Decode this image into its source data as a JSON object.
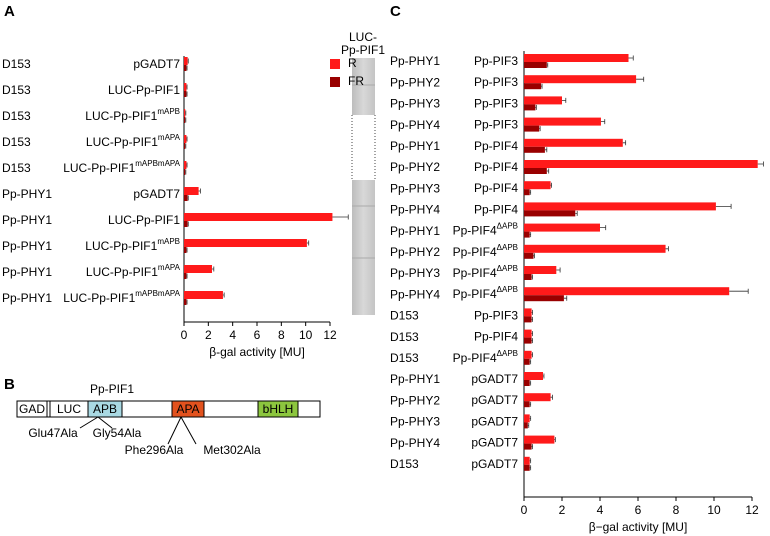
{
  "panels": [
    "A",
    "B",
    "C"
  ],
  "chart_data": [
    {
      "type": "barh",
      "xlabel": "β-gal activity [MU]",
      "xlim": [
        0,
        12
      ],
      "xticks": [
        0,
        2,
        4,
        6,
        8,
        10,
        12
      ],
      "legend": "upper right",
      "blot_label": [
        "LUC-",
        "Pp-PIF1"
      ],
      "categories": [
        {
          "bait": "D153",
          "prey": "pGADT7"
        },
        {
          "bait": "D153",
          "prey": "LUC-Pp-PIF1"
        },
        {
          "bait": "D153",
          "prey": "LUC-Pp-PIF1",
          "sup": "mAPB"
        },
        {
          "bait": "D153",
          "prey": "LUC-Pp-PIF1",
          "sup": "mAPA"
        },
        {
          "bait": "D153",
          "prey": "LUC-Pp-PIF1",
          "sup": "mAPBmAPA"
        },
        {
          "bait": "Pp-PHY1",
          "prey": "pGADT7"
        },
        {
          "bait": "Pp-PHY1",
          "prey": "LUC-Pp-PIF1"
        },
        {
          "bait": "Pp-PHY1",
          "prey": "LUC-Pp-PIF1",
          "sup": "mAPB"
        },
        {
          "bait": "Pp-PHY1",
          "prey": "LUC-Pp-PIF1",
          "sup": "mAPA"
        },
        {
          "bait": "Pp-PHY1",
          "prey": "LUC-Pp-PIF1",
          "sup": "mAPBmAPA"
        }
      ],
      "series": [
        {
          "name": "R",
          "color": "#ff1a1a",
          "values": [
            0.3,
            0.2,
            0.1,
            0.2,
            0.2,
            1.2,
            12.2,
            10.1,
            2.3,
            3.2
          ],
          "errors": [
            0.05,
            0.05,
            0.05,
            0.05,
            0.05,
            0.15,
            1.3,
            0.15,
            0.15,
            0.1
          ]
        },
        {
          "name": "FR",
          "color": "#990000",
          "values": [
            0.2,
            0.2,
            0.1,
            0.1,
            0.1,
            0.3,
            0.3,
            0.2,
            0.2,
            0.2
          ],
          "errors": [
            0.05,
            0.05,
            0.05,
            0.05,
            0.05,
            0.05,
            0.05,
            0.05,
            0.05,
            0.05
          ]
        }
      ]
    },
    {
      "type": "barh",
      "xlabel": "β−gal activity [MU]",
      "xlim": [
        0,
        12
      ],
      "xticks": [
        0,
        2,
        4,
        6,
        8,
        10,
        12
      ],
      "categories": [
        {
          "bait": "Pp-PHY1",
          "prey": "Pp-PIF3"
        },
        {
          "bait": "Pp-PHY2",
          "prey": "Pp-PIF3"
        },
        {
          "bait": "Pp-PHY3",
          "prey": "Pp-PIF3"
        },
        {
          "bait": "Pp-PHY4",
          "prey": "Pp-PIF3"
        },
        {
          "bait": "Pp-PHY1",
          "prey": "Pp-PIF4"
        },
        {
          "bait": "Pp-PHY2",
          "prey": "Pp-PIF4"
        },
        {
          "bait": "Pp-PHY3",
          "prey": "Pp-PIF4"
        },
        {
          "bait": "Pp-PHY4",
          "prey": "Pp-PIF4"
        },
        {
          "bait": "Pp-PHY1",
          "prey": "Pp-PIF4",
          "sup": "ΔAPB"
        },
        {
          "bait": "Pp-PHY2",
          "prey": "Pp-PIF4",
          "sup": "ΔAPB"
        },
        {
          "bait": "Pp-PHY3",
          "prey": "Pp-PIF4",
          "sup": "ΔAPB"
        },
        {
          "bait": "Pp-PHY4",
          "prey": "Pp-PIF4",
          "sup": "ΔAPB"
        },
        {
          "bait": "D153",
          "prey": "Pp-PIF3"
        },
        {
          "bait": "D153",
          "prey": "Pp-PIF4"
        },
        {
          "bait": "D153",
          "prey": "Pp-PIF4",
          "sup": "ΔAPB"
        },
        {
          "bait": "Pp-PHY1",
          "prey": "pGADT7"
        },
        {
          "bait": "Pp-PHY2",
          "prey": "pGADT7"
        },
        {
          "bait": "Pp-PHY3",
          "prey": "pGADT7"
        },
        {
          "bait": "Pp-PHY4",
          "prey": "pGADT7"
        },
        {
          "bait": "D153",
          "prey": "pGADT7"
        }
      ],
      "series": [
        {
          "name": "R",
          "color": "#ff1a1a",
          "values": [
            5.5,
            5.9,
            2.0,
            4.05,
            5.2,
            12.3,
            1.4,
            10.1,
            4.0,
            7.45,
            1.7,
            10.8,
            0.4,
            0.4,
            0.4,
            1.0,
            1.4,
            0.3,
            1.6,
            0.3
          ],
          "errors": [
            0.25,
            0.4,
            0.2,
            0.2,
            0.15,
            0.3,
            0.05,
            0.8,
            0.3,
            0.15,
            0.2,
            1.0,
            0.05,
            0.05,
            0.05,
            0.05,
            0.1,
            0.05,
            0.05,
            0.05
          ]
        },
        {
          "name": "FR",
          "color": "#990000",
          "values": [
            1.2,
            0.9,
            0.6,
            0.8,
            1.1,
            1.2,
            0.3,
            2.7,
            0.3,
            0.5,
            0.4,
            2.1,
            0.4,
            0.4,
            0.3,
            0.3,
            0.3,
            0.2,
            0.4,
            0.3
          ],
          "errors": [
            0.05,
            0.05,
            0.05,
            0.05,
            0.1,
            0.1,
            0.05,
            0.1,
            0.05,
            0.05,
            0.05,
            0.15,
            0.05,
            0.05,
            0.05,
            0.05,
            0.05,
            0.05,
            0.05,
            0.05
          ]
        }
      ]
    }
  ],
  "diagram": {
    "title": "Pp-PIF1",
    "domains": [
      "GAD",
      "LUC",
      "APB",
      "APA",
      "bHLH"
    ],
    "mutations": [
      "Glu47Ala",
      "Gly54Ala",
      "Phe296Ala",
      "Met302Ala"
    ]
  }
}
